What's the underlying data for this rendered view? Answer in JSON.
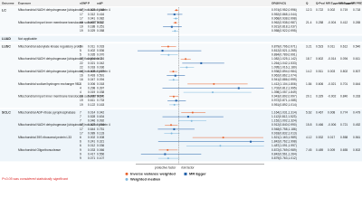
{
  "header": [
    "Outcome",
    "Exposure",
    "nSNP",
    "P",
    "adjP",
    "OR(95%CI)",
    "Q",
    "Q-Pval",
    "MR Egger intercept",
    "MR Egger P",
    "MR PRESSO global test"
  ],
  "xlim": [
    0.5,
    2
  ],
  "ref": 1,
  "groups": [
    {
      "name": "LC",
      "rows": [
        {
          "cells": [
            "Mitochondrial NADH dehydrogenase [ubiquinone] iron-sulfur protein 4",
            "17",
            "0.024",
            "0.048",
            "0.974(0.952,0.996)",
            "12.3",
            "0.722",
            "0.002",
            "0.719",
            "0.718"
          ],
          "ci": [
            0.974,
            0.952,
            0.996
          ]
        },
        {
          "cells": [
            null,
            "17",
            "0.312",
            "0.416",
            "0.952(0.868,1.044)",
            null,
            null,
            null,
            null,
            null
          ],
          "ci": [
            0.952,
            0.868,
            1.044
          ]
        },
        {
          "cells": [
            null,
            "17",
            "0.041",
            "0.082",
            "0.968(0.938,0.998)",
            null,
            null,
            null,
            null,
            null
          ],
          "ci": [
            0.968,
            0.938,
            0.998
          ]
        },
        {
          "cells": [
            "Mitochondrial import inner membrane translocase subunit TIM14",
            "19",
            "0.003",
            "0.012",
            "0.962(0.938,0.987)",
            "21.4",
            "0.258",
            "-0.004",
            "0.412",
            "0.265"
          ],
          "ci": [
            0.962,
            0.938,
            0.987
          ]
        },
        {
          "cells": [
            null,
            "19",
            "0.188",
            "0.251",
            "0.921(0.818,1.037)",
            null,
            null,
            null,
            null,
            null
          ],
          "ci": [
            0.921,
            0.818,
            1.037
          ]
        },
        {
          "cells": [
            null,
            "19",
            "0.029",
            "0.058",
            "0.958(0.922,0.995)",
            null,
            null,
            null,
            null,
            null
          ],
          "ci": [
            0.958,
            0.922,
            0.995
          ]
        }
      ]
    },
    {
      "name": "LUAD",
      "rows": [
        {
          "cells": [
            "Not applicable",
            null,
            null,
            null,
            null,
            null,
            null,
            null,
            null,
            null
          ]
        }
      ]
    },
    {
      "name": "LUSC",
      "rows": [
        {
          "cells": [
            "Mitochondrial adenylate kinase regulatory protein",
            "5",
            "0.011",
            "0.033",
            "0.879(0.796,0.971)",
            "3.21",
            "0.523",
            "0.011",
            "0.612",
            "0.540"
          ],
          "ci": [
            0.879,
            0.796,
            0.971
          ]
        },
        {
          "cells": [
            null,
            "5",
            "0.402",
            "0.536",
            "0.812(0.521,1.265)",
            null,
            null,
            null,
            null,
            null
          ],
          "ci": [
            0.812,
            0.521,
            1.265
          ]
        },
        {
          "cells": [
            null,
            "5",
            "0.035",
            "0.070",
            "0.884(0.789,0.991)",
            null,
            null,
            null,
            null,
            null
          ],
          "ci": [
            0.884,
            0.789,
            0.991
          ]
        },
        {
          "cells": [
            "Mitochondrial NADH dehydrogenase [ubiquinone] flavoprotein 2",
            "22",
            "0.004",
            "0.016",
            "1.082(1.025,1.142)",
            "18.7",
            "0.602",
            "-0.014",
            "0.094",
            "0.611"
          ],
          "ci": [
            1.082,
            1.025,
            1.142
          ]
        },
        {
          "cells": [
            null,
            "22",
            "0.021",
            "0.042",
            "1.264(1.042,1.533)",
            null,
            null,
            null,
            null,
            null
          ],
          "ci": [
            1.264,
            1.042,
            1.533
          ]
        },
        {
          "cells": [
            null,
            "22",
            "0.018",
            "0.036",
            "1.095(1.016,1.180)",
            null,
            null,
            null,
            null,
            null
          ],
          "ci": [
            1.095,
            1.016,
            1.18
          ]
        },
        {
          "cells": [
            "Mitochondrial NADH dehydrogenase [ubiquinone] iron-sulfur protein 4",
            "16",
            "0.009",
            "0.027",
            "0.938(0.894,0.984)",
            "14.2",
            "0.511",
            "0.003",
            "0.802",
            "0.507"
          ],
          "ci": [
            0.938,
            0.894,
            0.984
          ]
        },
        {
          "cells": [
            null,
            "16",
            "0.493",
            "0.591",
            "0.962(0.862,1.074)",
            null,
            null,
            null,
            null,
            null
          ],
          "ci": [
            0.962,
            0.862,
            1.074
          ]
        },
        {
          "cells": [
            null,
            "16",
            "0.047",
            "0.094",
            "0.941(0.886,0.999)",
            null,
            null,
            null,
            null,
            null
          ],
          "ci": [
            0.941,
            0.886,
            0.999
          ]
        },
        {
          "cells": [
            "Mitochondrial sodium/hydrogen exchanger 9B2",
            "4",
            "0.006",
            "0.018",
            "1.412(1.104,1.806)",
            "1.84",
            "0.606",
            "-0.021",
            "0.701",
            "0.644"
          ],
          "ci": [
            1.412,
            1.104,
            1.806
          ]
        },
        {
          "cells": [
            null,
            "4",
            "0.298",
            "0.397",
            "1.702(0.812,1.995)",
            null,
            null,
            null,
            null,
            null
          ],
          "ci": [
            1.702,
            0.812,
            1.995
          ]
        },
        {
          "cells": [
            null,
            "4",
            "0.019",
            "0.038",
            "1.398(1.057,1.849)",
            null,
            null,
            null,
            null,
            null
          ],
          "ci": [
            1.398,
            1.057,
            1.849
          ]
        },
        {
          "cells": [
            "Mitochondrial import inner membrane translocase subunit TIM14",
            "19",
            "0.038",
            "0.076",
            "0.943(0.892,0.997)",
            "20.1",
            "0.329",
            "-0.002",
            "0.840",
            "0.318"
          ],
          "ci": [
            0.943,
            0.892,
            0.997
          ]
        },
        {
          "cells": [
            null,
            "19",
            "0.611",
            "0.733",
            "0.972(0.871,1.085)",
            null,
            null,
            null,
            null,
            null
          ],
          "ci": [
            0.972,
            0.871,
            1.085
          ]
        },
        {
          "cells": [
            null,
            "19",
            "0.122",
            "0.163",
            "0.951(0.892,1.014)",
            null,
            null,
            null,
            null,
            null
          ],
          "ci": [
            0.951,
            0.892,
            1.014
          ]
        }
      ]
    },
    {
      "name": "SCLC",
      "rows": [
        {
          "cells": [
            "Mitochondrial ADP-ribose pyrophosphatase",
            "7",
            "0.014",
            "0.042",
            "1.164(1.031,1.314)",
            "5.62",
            "0.467",
            "0.008",
            "0.774",
            "0.479"
          ],
          "ci": [
            1.164,
            1.031,
            1.314
          ]
        },
        {
          "cells": [
            null,
            "7",
            "0.528",
            "0.634",
            "1.112(0.812,1.523)",
            null,
            null,
            null,
            null,
            null
          ],
          "ci": [
            1.112,
            0.812,
            1.523
          ]
        },
        {
          "cells": [
            null,
            "7",
            "0.046",
            "0.092",
            "1.152(1.002,1.324)",
            null,
            null,
            null,
            null,
            null
          ],
          "ci": [
            1.152,
            1.002,
            1.324
          ]
        },
        {
          "cells": [
            "Mitochondrial NADH dehydrogenase [ubiquinone] iron-sulfur protein 4",
            "17",
            "0.027",
            "0.054",
            "0.912(0.840,0.990)",
            "15.8",
            "0.466",
            "-0.006",
            "0.721",
            "0.452"
          ],
          "ci": [
            0.912,
            0.84,
            0.99
          ]
        },
        {
          "cells": [
            null,
            "17",
            "0.644",
            "0.751",
            "0.948(0.758,1.186)",
            null,
            null,
            null,
            null,
            null
          ],
          "ci": [
            0.948,
            0.758,
            1.186
          ]
        },
        {
          "cells": [
            null,
            "17",
            "0.089",
            "0.133",
            "0.918(0.832,1.013)",
            null,
            null,
            null,
            null,
            null
          ],
          "ci": [
            0.918,
            0.832,
            1.013
          ]
        },
        {
          "cells": [
            "Mitochondrial 39S ribosomal protein L33",
            "6",
            "0.002",
            "0.008",
            "1.521(1.163,1.989)",
            "4.12",
            "0.532",
            "0.017",
            "0.558",
            "0.561"
          ],
          "ci": [
            1.521,
            1.163,
            1.989
          ]
        },
        {
          "cells": [
            null,
            "6",
            "0.241",
            "0.321",
            "1.842(0.762,1.998)",
            null,
            null,
            null,
            null,
            null
          ],
          "ci": [
            1.842,
            0.762,
            1.998
          ]
        },
        {
          "cells": [
            null,
            "6",
            "0.012",
            "0.036",
            "1.487(1.091,1.997)",
            null,
            null,
            null,
            null,
            null
          ],
          "ci": [
            1.487,
            1.091,
            1.997
          ]
        },
        {
          "cells": [
            "Mitochondrial Oligoribonuclease",
            "9",
            "0.033",
            "0.066",
            "0.872(0.769,0.989)",
            "7.45",
            "0.489",
            "0.009",
            "0.655",
            "0.502"
          ],
          "ci": [
            0.872,
            0.769,
            0.989
          ]
        },
        {
          "cells": [
            null,
            "9",
            "0.417",
            "0.556",
            "0.842(0.561,1.264)",
            null,
            null,
            null,
            null,
            null
          ],
          "ci": [
            0.842,
            0.561,
            1.264
          ]
        },
        {
          "cells": [
            null,
            "9",
            "0.071",
            "0.107",
            "0.879(0.763,1.012)",
            null,
            null,
            null,
            null,
            null
          ],
          "ci": [
            0.879,
            0.763,
            1.012
          ]
        }
      ]
    }
  ],
  "axis_labels": [
    "protective factor",
    "risk factor"
  ],
  "legend": [
    "Inverse variance weighted",
    "MR Egger",
    "Weighted median"
  ],
  "note": "P<0.05 was considered statistically significant"
}
